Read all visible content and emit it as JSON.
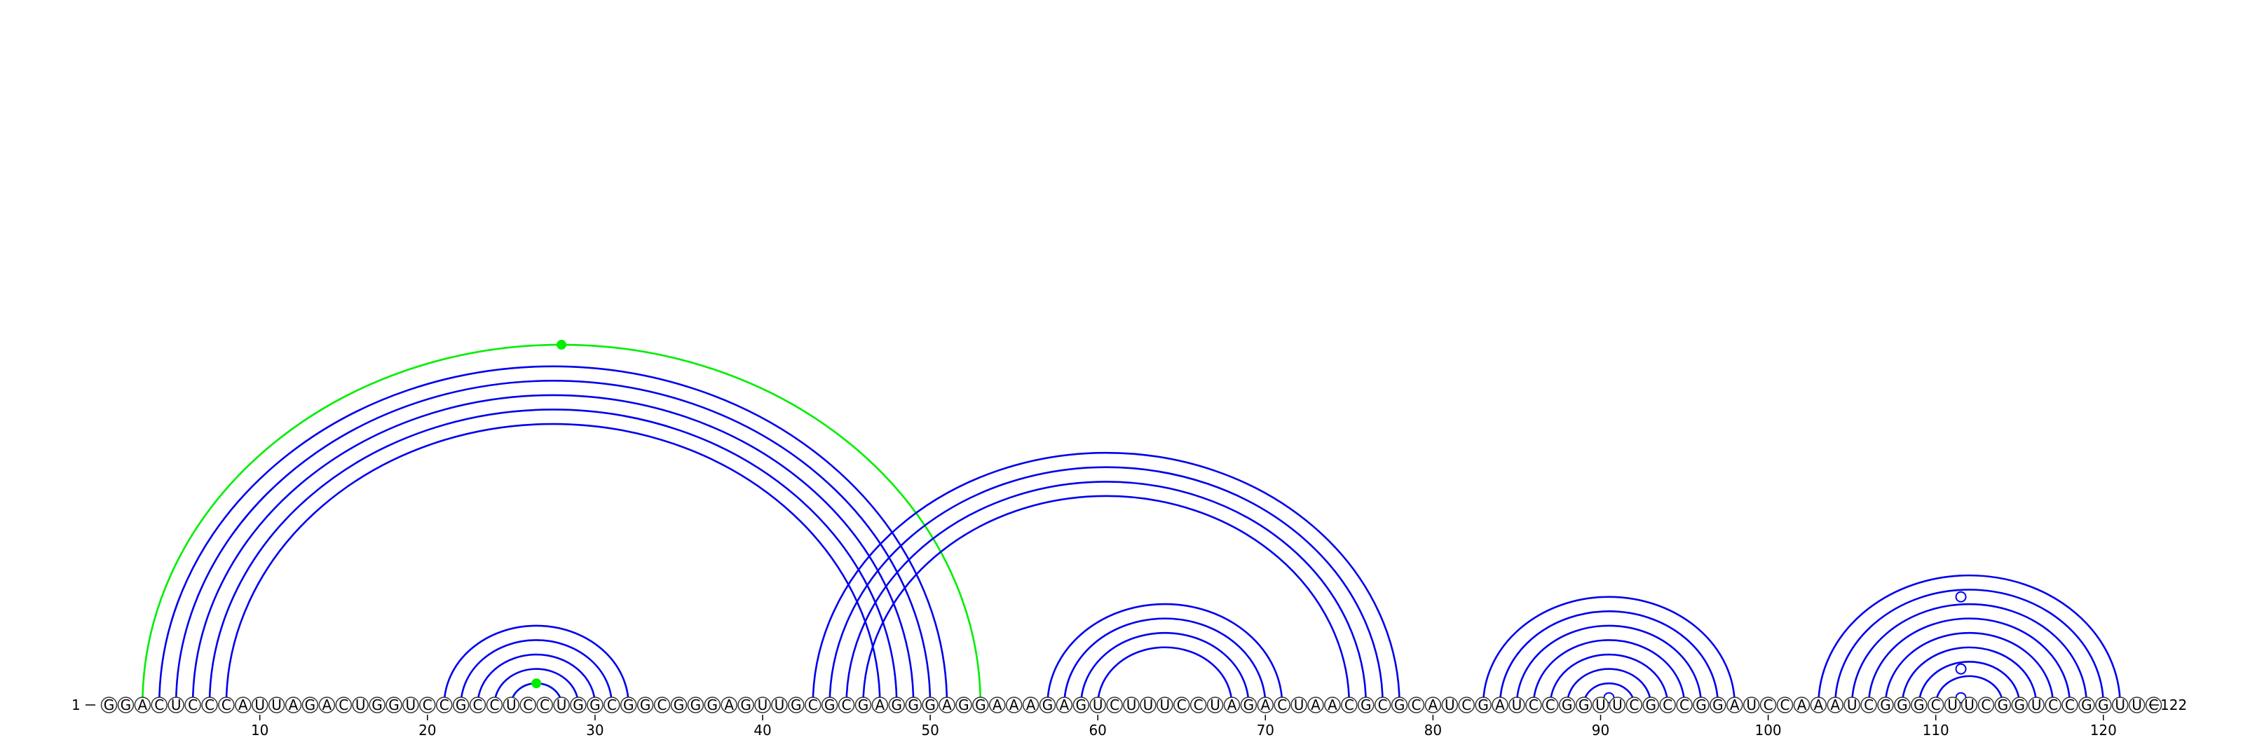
{
  "sequence": "GGACUCCCAUUAGACUGGUCCGCCUCCUGGCGGCGGGAGUUGCGCGAGGGAGGAAAGAGUCUUUCCUAGACUAACGCGCAUCGAUCCGGUUCGCCGGAUCCAAAUCGGGCUUCGGUCCGGUUC",
  "start_label": "1",
  "end_label": "122",
  "ticks": [
    10,
    20,
    30,
    40,
    50,
    60,
    70,
    80,
    90,
    100,
    110,
    120
  ],
  "colors": {
    "stem_arc": "#0000ee",
    "green_arc": "#00ee00",
    "open_marker_stroke": "#0000ee",
    "open_marker_fill": "#ffffff"
  },
  "pairs_blue": [
    [
      4,
      51
    ],
    [
      5,
      50
    ],
    [
      6,
      49
    ],
    [
      7,
      48
    ],
    [
      8,
      47
    ],
    [
      21,
      32
    ],
    [
      22,
      31
    ],
    [
      23,
      30
    ],
    [
      24,
      29
    ],
    [
      25,
      28
    ],
    [
      43,
      78
    ],
    [
      44,
      77
    ],
    [
      45,
      76
    ],
    [
      46,
      75
    ],
    [
      57,
      71
    ],
    [
      58,
      70
    ],
    [
      59,
      69
    ],
    [
      60,
      68
    ],
    [
      83,
      98
    ],
    [
      84,
      97
    ],
    [
      85,
      96
    ],
    [
      86,
      95
    ],
    [
      87,
      94
    ],
    [
      88,
      93
    ],
    [
      89,
      92
    ],
    [
      103,
      121
    ],
    [
      104,
      120
    ],
    [
      105,
      119
    ],
    [
      106,
      118
    ],
    [
      107,
      117
    ],
    [
      108,
      116
    ],
    [
      109,
      115
    ],
    [
      110,
      114
    ]
  ],
  "pairs_green": [
    [
      3,
      53
    ],
    [
      25,
      28
    ]
  ],
  "green_markers": [
    [
      3,
      53
    ],
    [
      25,
      28
    ]
  ],
  "open_markers": [
    [
      90,
      91
    ],
    [
      111,
      112
    ],
    [
      109,
      114
    ],
    [
      104,
      119
    ]
  ]
}
